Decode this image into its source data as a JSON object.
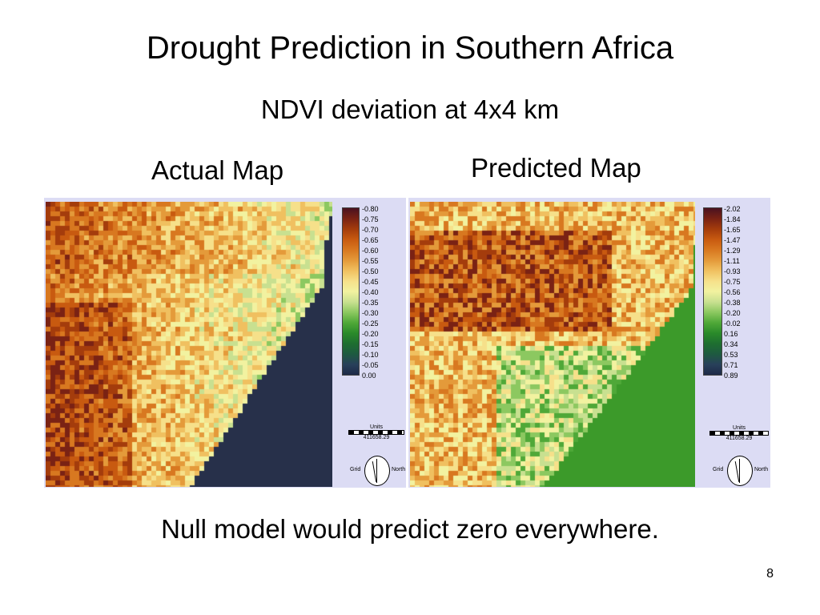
{
  "title": "Drought Prediction in Southern Africa",
  "subtitle": "NDVI deviation at 4x4 km",
  "actual": {
    "label": "Actual Map",
    "legend": [
      "-0.80",
      "-0.75",
      "-0.70",
      "-0.65",
      "-0.60",
      "-0.55",
      "-0.50",
      "-0.45",
      "-0.40",
      "-0.35",
      "-0.30",
      "-0.25",
      "-0.20",
      "-0.15",
      "-0.10",
      "-0.05",
      "0.00"
    ],
    "ocean_color": "#27304a",
    "units_label": "Units",
    "scale_value": "411658.29",
    "compass": {
      "left": "Grid",
      "right": "North"
    }
  },
  "predicted": {
    "label": "Predicted Map",
    "legend": [
      "-2.02",
      "-1.84",
      "-1.65",
      "-1.47",
      "-1.29",
      "-1.11",
      "-0.93",
      "-0.75",
      "-0.56",
      "-0.38",
      "-0.20",
      "-0.02",
      "0.16",
      "0.34",
      "0.53",
      "0.71",
      "0.89"
    ],
    "ocean_color": "#3c9a2a",
    "units_label": "Units",
    "scale_value": "411658.29",
    "compass": {
      "left": "Grid",
      "right": "North"
    }
  },
  "palette": [
    "#4a1220",
    "#7a2214",
    "#a43c0c",
    "#c85a10",
    "#d87820",
    "#e49a3a",
    "#f0c060",
    "#f6e08a",
    "#f2f2a0",
    "#c8e090",
    "#8cc860",
    "#4fa838",
    "#2a8a2a",
    "#1e6e30",
    "#1e5a40",
    "#28405a",
    "#1e2a48"
  ],
  "footer": "Null model would predict zero everywhere.",
  "page_number": "8"
}
